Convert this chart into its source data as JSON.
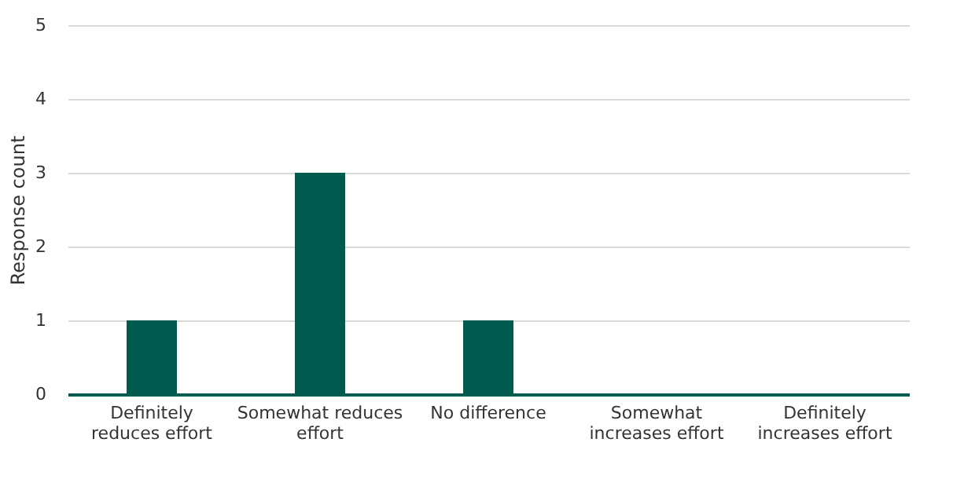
{
  "chart_data": {
    "type": "bar",
    "ylabel": "Response count",
    "categories": [
      "Definitely reduces effort",
      "Somewhat reduces effort",
      "No difference",
      "Somewhat increases effort",
      "Definitely increases effort"
    ],
    "values": [
      1,
      3,
      1,
      0,
      0
    ],
    "color": "#005a4e",
    "ylim": [
      0,
      5
    ],
    "yticks": [
      0,
      1,
      2,
      3,
      4,
      5
    ],
    "grid": "y"
  }
}
